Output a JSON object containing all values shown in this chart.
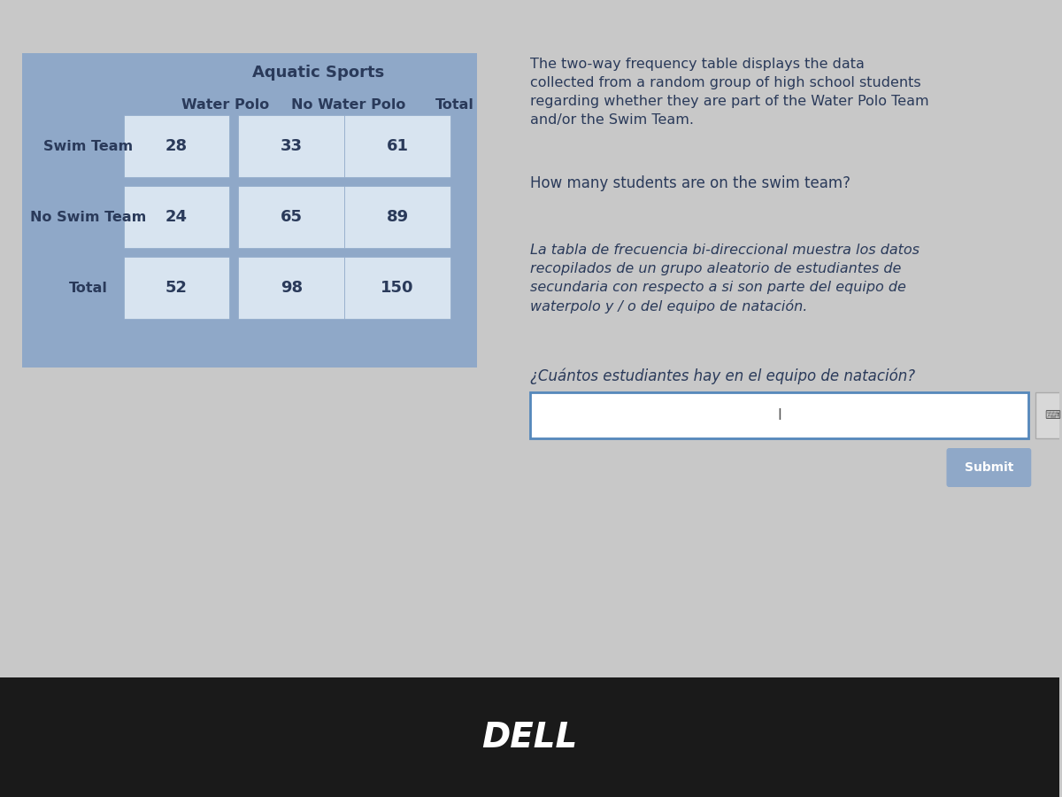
{
  "bg_color": "#c8c8c8",
  "table_bg_color": "#8fa8c8",
  "cell_bg_color": "#d8e4f0",
  "table_header": "Aquatic Sports",
  "col_headers": [
    "Water Polo",
    "No Water Polo",
    "Total"
  ],
  "row_headers": [
    "Swim Team",
    "No Swim Team",
    "Total"
  ],
  "data": [
    [
      "28",
      "33",
      "61"
    ],
    [
      "24",
      "65",
      "89"
    ],
    [
      "52",
      "98",
      "150"
    ]
  ],
  "text_color": "#2a3a5a",
  "english_desc": "The two-way frequency table displays the data\ncollected from a random group of high school students\nregarding whether they are part of the Water Polo Team\nand/or the Swim Team.",
  "english_question": "How many students are on the swim team?",
  "spanish_desc": "La tabla de frecuencia bi-direccional muestra los datos\nrecopilados de un grupo aleatorio de estudiantes de\nsecundaria con respecto a si son parte del equipo de\nwaterpolo y / o del equipo de natación.",
  "spanish_question": "¿Cuántos estudiantes hay en el equipo de natación?",
  "submit_label": "Submit",
  "dell_label": "DELL",
  "input_box_color": "#ffffff",
  "input_border_color": "#5588bb",
  "submit_bg": "#8fa8c8",
  "bottom_bar_color": "#1a1a1a"
}
